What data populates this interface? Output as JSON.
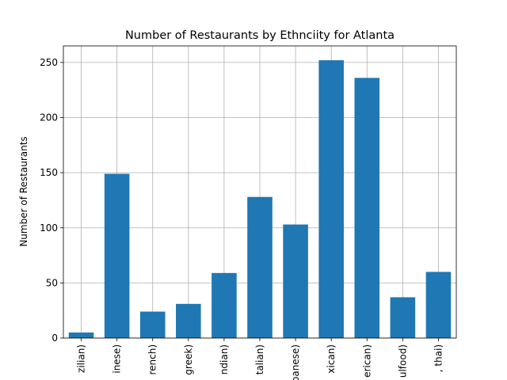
{
  "chart_data": {
    "type": "bar",
    "title": "Number of Restaurants by Ethnciity for Atlanta",
    "xlabel": "",
    "ylabel": "Number of Restaurants",
    "categories": [
      "zilian)",
      "inese)",
      "rench)",
      "greek)",
      "ndian)",
      "talian)",
      "panese)",
      "xican)",
      "erican)",
      "ulfood)",
      ", thai)"
    ],
    "values": [
      5,
      149,
      24,
      31,
      59,
      128,
      103,
      252,
      236,
      37,
      60
    ],
    "ylim": [
      0,
      265
    ],
    "yticks": [
      0,
      50,
      100,
      150,
      200,
      250
    ],
    "grid": true,
    "bar_color": "#1f77b4"
  }
}
